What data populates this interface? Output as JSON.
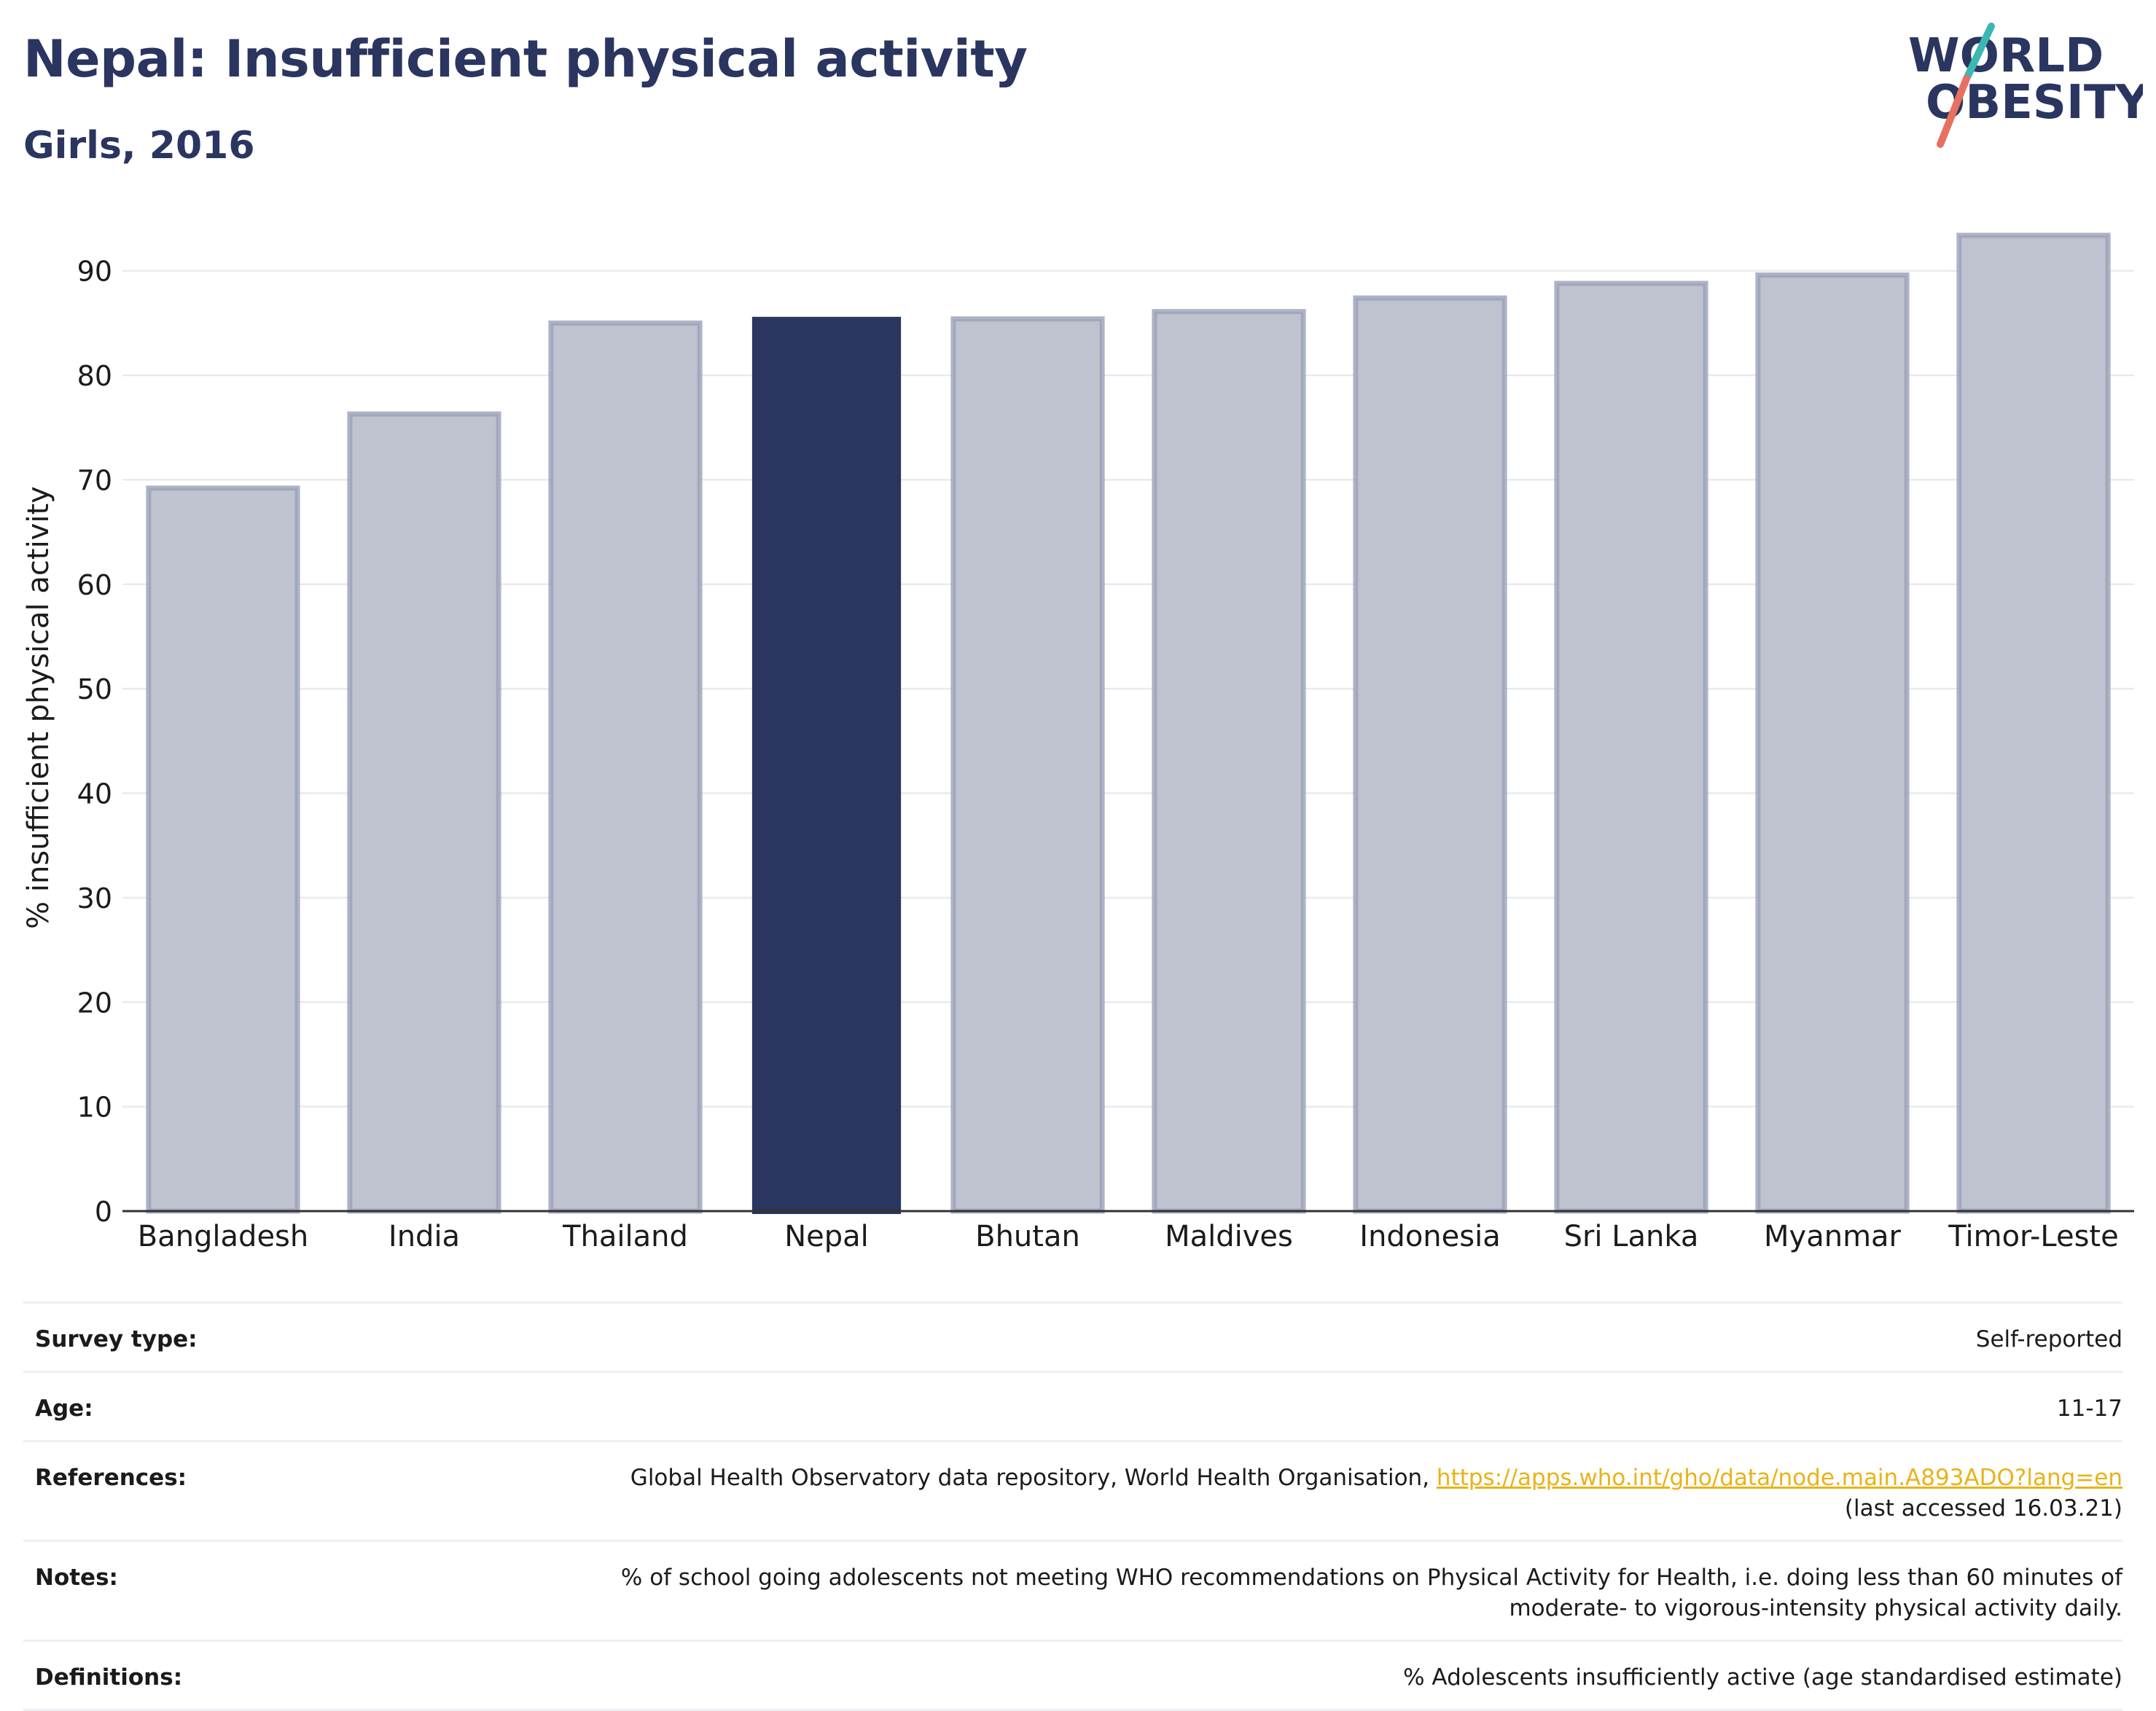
{
  "header": {
    "title": "Nepal: Insufficient physical activity",
    "subtitle": "Girls, 2016"
  },
  "logo": {
    "line1": "WORLD",
    "line2": "OBESITY",
    "colors": {
      "text": "#2a3560",
      "slash_teal": "#3bb8b4",
      "slash_coral": "#e8705f"
    }
  },
  "chart_data": {
    "type": "bar",
    "title": "Nepal: Insufficient physical activity",
    "subtitle": "Girls, 2016",
    "xlabel": "",
    "ylabel": "% insufficient physical activity",
    "categories": [
      "Bangladesh",
      "India",
      "Thailand",
      "Nepal",
      "Bhutan",
      "Maldives",
      "Indonesia",
      "Sri Lanka",
      "Myanmar",
      "Timor-Leste"
    ],
    "values": [
      69.2,
      76.3,
      85.0,
      85.6,
      85.4,
      86.1,
      87.4,
      88.8,
      89.6,
      93.4
    ],
    "highlight": "Nepal",
    "ylim": [
      0,
      95
    ],
    "yticks": [
      0,
      10,
      20,
      30,
      40,
      50,
      60,
      70,
      80,
      90
    ],
    "grid": true,
    "legend": "none",
    "colors": {
      "bar_fill": "#bfc2cf",
      "bar_edge": "#9aa0b8",
      "highlight_fill": "#2a3560",
      "grid": "#e8eaf0",
      "axis": "#333333"
    }
  },
  "meta": [
    {
      "label": "Survey type:",
      "value": "Self-reported"
    },
    {
      "label": "Age:",
      "value": "11-17"
    },
    {
      "label": "References:",
      "value": "Global Health Observatory data repository, World Health Organisation,",
      "link": "https://apps.who.int/gho/data/node.main.A893ADO?lang=en",
      "value2": "(last accessed 16.03.21)"
    },
    {
      "label": "Notes:",
      "value": "% of school going adolescents not meeting WHO recommendations on Physical Activity for Health, i.e. doing less than 60 minutes of",
      "value2": "moderate- to vigorous-intensity physical activity daily."
    },
    {
      "label": "Definitions:",
      "value": "% Adolescents insufficiently active (age standardised estimate)"
    }
  ]
}
